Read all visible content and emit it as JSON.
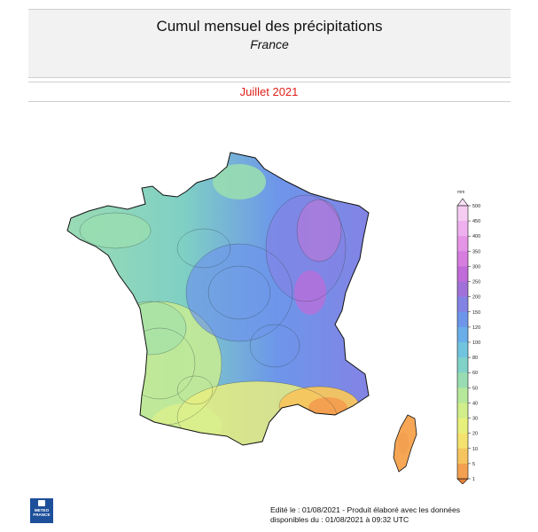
{
  "header": {
    "title": "Cumul mensuel des précipitations",
    "subtitle": "France"
  },
  "period": "Juillet 2021",
  "legend": {
    "unit": "mm",
    "ticks": [
      "500",
      "450",
      "400",
      "350",
      "300",
      "250",
      "200",
      "150",
      "120",
      "100",
      "80",
      "60",
      "50",
      "40",
      "30",
      "20",
      "10",
      "5",
      "1"
    ],
    "colors": [
      "#f6ccf2",
      "#eeb0ee",
      "#e595e6",
      "#d67ddf",
      "#c06bd9",
      "#a072d9",
      "#8383e4",
      "#6d96ea",
      "#69aee8",
      "#71c4de",
      "#80d2c9",
      "#98ddb1",
      "#b6e89a",
      "#d1ee8a",
      "#e8f07c",
      "#f4e26e",
      "#f6c55f",
      "#f3a050"
    ]
  },
  "logo": {
    "name": "meteo-france-logo",
    "text": "METEO FRANCE"
  },
  "footer": {
    "line1": "Edité le : 01/08/2021 - Produit élaboré avec les données",
    "line2": "disponibles du : 01/08/2021 à 09:32 UTC"
  }
}
